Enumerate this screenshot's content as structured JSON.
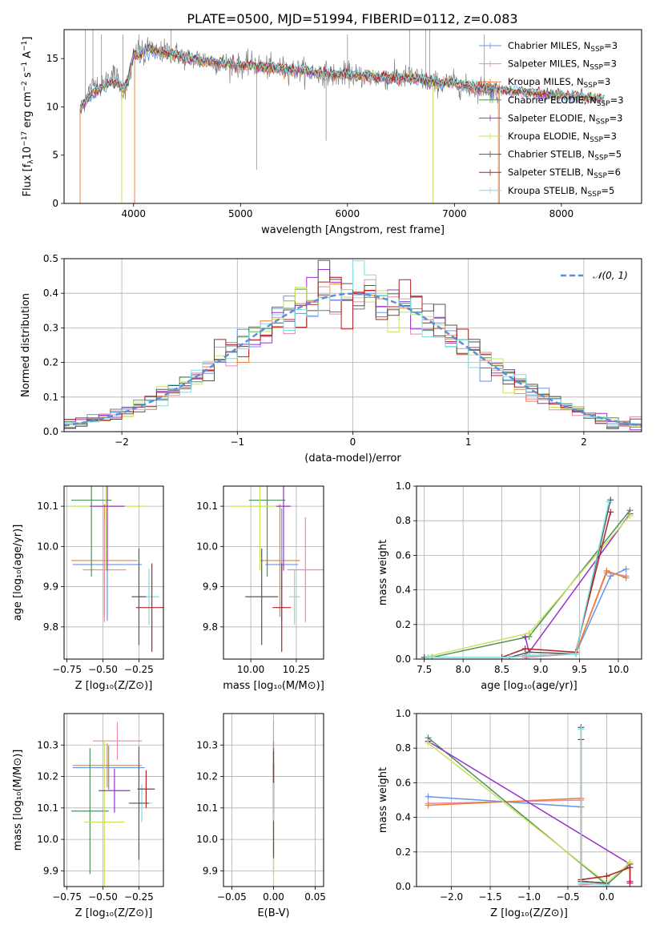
{
  "figure": {
    "title": "PLATE=0500, MJD=51994, FIBERID=0112, z=0.083"
  },
  "series_styles": [
    {
      "name": "Chabrier MILES, N_{SSP}=3",
      "color": "#6495ed"
    },
    {
      "name": "Salpeter MILES, N_{SSP}=3",
      "color": "#e78bab"
    },
    {
      "name": "Kroupa MILES, N_{SSP}=3",
      "color": "#ed7d31"
    },
    {
      "name": "Chabrier ELODIE, N_{SSP}=3",
      "color": "#4f8f5f"
    },
    {
      "name": "Salpeter ELODIE, N_{SSP}=3",
      "color": "#9932cc"
    },
    {
      "name": "Kroupa ELODIE, N_{SSP}=3",
      "color": "#c8e35a"
    },
    {
      "name": "Chabrier STELIB, N_{SSP}=5",
      "color": "#555555"
    },
    {
      "name": "Salpeter STELIB, N_{SSP}=6",
      "color": "#b22222"
    },
    {
      "name": "Kroupa STELIB, N_{SSP}=5",
      "color": "#7fdde0"
    }
  ],
  "chart_data": [
    {
      "id": "spectrum",
      "type": "line",
      "xlabel": "wavelength [Angstrom, rest frame]",
      "ylabel": "Flux [f_λ10^{-17} erg cm^{-2} s^{-1} A^{-1}]",
      "xlim": [
        3350,
        8750
      ],
      "ylim": [
        0,
        18
      ],
      "xticks": [
        4000,
        5000,
        6000,
        7000,
        8000
      ],
      "yticks": [
        0,
        5,
        10,
        15
      ],
      "grid": false,
      "legend_position": "upper-right",
      "observed": {
        "name": "data",
        "color": "#808080",
        "x": [
          3500,
          3550,
          3600,
          3650,
          3700,
          3750,
          3800,
          3850,
          3900,
          3950,
          4000,
          4050,
          4100,
          4150,
          4200,
          4300,
          4400,
          4500,
          4600,
          4700,
          4800,
          4900,
          5000,
          5100,
          5200,
          5300,
          5400,
          5500,
          5600,
          5700,
          5800,
          5900,
          6000,
          6100,
          6200,
          6300,
          6400,
          6500,
          6600,
          6700,
          6800,
          6900,
          7000,
          7100,
          7200,
          7300,
          7400
        ],
        "y": [
          9.5,
          11.0,
          12.0,
          12.5,
          12.0,
          12.8,
          13.5,
          13.0,
          11.5,
          12.5,
          15.0,
          16.0,
          15.0,
          16.5,
          15.5,
          15.8,
          15.5,
          15.0,
          15.0,
          14.8,
          14.5,
          14.5,
          14.2,
          14.5,
          14.2,
          14.0,
          14.0,
          13.8,
          13.8,
          13.5,
          13.5,
          13.2,
          13.5,
          13.2,
          13.2,
          13.0,
          13.0,
          13.0,
          13.2,
          12.8,
          12.5,
          12.5,
          12.5,
          12.0,
          12.0,
          12.0,
          11.5
        ]
      },
      "spikes": [
        {
          "x": 3550,
          "top": 18
        },
        {
          "x": 3620,
          "top": 18
        },
        {
          "x": 3700,
          "top": 17.5
        },
        {
          "x": 3900,
          "top": 17.5
        },
        {
          "x": 4050,
          "top": 17.5
        },
        {
          "x": 4350,
          "top": 18
        },
        {
          "x": 6000,
          "top": 17.5
        },
        {
          "x": 6580,
          "top": 18
        },
        {
          "x": 6730,
          "top": 18
        },
        {
          "x": 6770,
          "top": 18
        },
        {
          "x": 7280,
          "top": 17.5
        }
      ],
      "dips": [
        {
          "x": 3500,
          "bottom": 0
        },
        {
          "x": 3890,
          "bottom": 0
        },
        {
          "x": 4010,
          "bottom": 0
        },
        {
          "x": 5150,
          "bottom": 3.5
        },
        {
          "x": 5800,
          "bottom": 6.5
        },
        {
          "x": 6800,
          "bottom": 0
        },
        {
          "x": 7420,
          "bottom": 0
        }
      ],
      "model": {
        "x": [
          3500,
          3550,
          3600,
          3650,
          3700,
          3750,
          3800,
          3850,
          3900,
          3950,
          4000,
          4050,
          4100,
          4150,
          4200,
          4300,
          4400,
          4500,
          4600,
          4700,
          4800,
          4900,
          5000,
          5100,
          5200,
          5300,
          5400,
          5500,
          5600,
          5700,
          5800,
          5900,
          6000,
          6100,
          6200,
          6300,
          6400,
          6500,
          6600,
          6700,
          6800,
          6900,
          7000,
          7100,
          7200,
          7300,
          7400,
          7500,
          7600,
          7700,
          7800,
          7900,
          8000,
          8100,
          8200,
          8300,
          8400
        ],
        "y": [
          9.8,
          10.5,
          11.2,
          11.8,
          12.0,
          12.3,
          12.6,
          12.4,
          11.8,
          12.8,
          15.5,
          15.2,
          15.8,
          16.0,
          15.6,
          15.6,
          15.4,
          15.0,
          14.8,
          14.7,
          14.5,
          14.4,
          14.3,
          14.3,
          14.1,
          14.0,
          13.9,
          13.8,
          13.7,
          13.5,
          13.4,
          13.3,
          13.3,
          13.2,
          13.1,
          13.0,
          13.0,
          12.9,
          12.9,
          12.8,
          12.6,
          12.5,
          12.4,
          12.2,
          12.0,
          11.9,
          11.8,
          11.7,
          11.6,
          11.5,
          11.4,
          11.3,
          11.2,
          11.1,
          11.0,
          10.9,
          10.8
        ]
      }
    },
    {
      "id": "residuals",
      "type": "line",
      "xlabel": "(data-model)/error",
      "ylabel": "Normed distribution",
      "xlim": [
        -2.5,
        2.5
      ],
      "ylim": [
        0,
        0.5
      ],
      "xticks": [
        -2,
        -1,
        0,
        1,
        2
      ],
      "yticks": [
        0.0,
        0.1,
        0.2,
        0.3,
        0.4,
        0.5
      ],
      "grid": true,
      "legend_position": "upper-right",
      "reference": {
        "name": "𝒩(0, 1)",
        "color": "#5b8fd9",
        "mean": 0,
        "sigma": 1
      },
      "bin_edges_start": -2.5,
      "bin_width": 0.1,
      "bins": 50
    },
    {
      "id": "age-vs-Z",
      "type": "scatter",
      "xlabel": "Z [log10(Z/Z⊙)]",
      "ylabel": "age [log10(age/yr)]",
      "xlim": [
        -0.77,
        -0.08
      ],
      "ylim": [
        9.72,
        10.15
      ],
      "xticks": [
        -0.75,
        -0.5,
        -0.25
      ],
      "yticks": [
        9.8,
        9.9,
        10.0,
        10.1
      ],
      "grid": true,
      "points": [
        {
          "x": -0.47,
          "y": 9.955,
          "xerr": 0.24,
          "yerr": 0.14,
          "series": 0
        },
        {
          "x": -0.49,
          "y": 9.965,
          "xerr": 0.23,
          "yerr": 0.14,
          "series": 2
        },
        {
          "x": -0.49,
          "y": 9.942,
          "xerr": 0.15,
          "yerr": 0.13,
          "series": 1
        },
        {
          "x": -0.58,
          "y": 10.115,
          "xerr": 0.14,
          "yerr": 0.19,
          "series": 3
        },
        {
          "x": -0.48,
          "y": 10.1,
          "xerr": 0.26,
          "yerr": 0.16,
          "series": 5
        },
        {
          "x": -0.47,
          "y": 10.1,
          "xerr": 0.12,
          "yerr": 0.16,
          "series": 4
        },
        {
          "x": -0.18,
          "y": 9.875,
          "xerr": 0.07,
          "yerr": 0.07,
          "series": 8
        },
        {
          "x": -0.16,
          "y": 9.848,
          "xerr": 0.11,
          "yerr": 0.11,
          "series": 7
        },
        {
          "x": -0.25,
          "y": 9.875,
          "xerr": 0.05,
          "yerr": 0.12,
          "series": 6
        }
      ]
    },
    {
      "id": "age-vs-mass",
      "type": "scatter",
      "xlabel": "mass [log10(M/M⊙)]",
      "ylabel": "",
      "xlim": [
        9.85,
        10.4
      ],
      "ylim": [
        9.72,
        10.15
      ],
      "xticks": [
        10.0,
        10.25
      ],
      "yticks": [
        9.8,
        9.9,
        10.0,
        10.1
      ],
      "grid": true,
      "points": [
        {
          "x": 10.17,
          "y": 9.955,
          "xerr": 0.09,
          "yerr": 0.14,
          "series": 0
        },
        {
          "x": 10.16,
          "y": 9.965,
          "xerr": 0.11,
          "yerr": 0.14,
          "series": 2
        },
        {
          "x": 10.3,
          "y": 9.942,
          "xerr": 0.1,
          "yerr": 0.13,
          "series": 1
        },
        {
          "x": 10.09,
          "y": 10.115,
          "xerr": 0.1,
          "yerr": 0.19,
          "series": 3
        },
        {
          "x": 10.05,
          "y": 10.1,
          "xerr": 0.16,
          "yerr": 0.16,
          "series": 5
        },
        {
          "x": 10.18,
          "y": 10.1,
          "xerr": 0.04,
          "yerr": 0.16,
          "series": 4
        },
        {
          "x": 10.24,
          "y": 9.875,
          "xerr": 0.03,
          "yerr": 0.07,
          "series": 8
        },
        {
          "x": 10.17,
          "y": 9.848,
          "xerr": 0.05,
          "yerr": 0.11,
          "series": 7
        },
        {
          "x": 10.06,
          "y": 9.875,
          "xerr": 0.09,
          "yerr": 0.12,
          "series": 6
        }
      ]
    },
    {
      "id": "weights-vs-age",
      "type": "line",
      "xlabel": "age  [log10(age/yr)]",
      "ylabel": "mass weight",
      "xlim": [
        7.4,
        10.3
      ],
      "ylim": [
        0,
        1
      ],
      "xticks": [
        7.5,
        8.0,
        8.5,
        9.0,
        9.5,
        10.0
      ],
      "yticks": [
        0.0,
        0.2,
        0.4,
        0.6,
        0.8,
        1.0
      ],
      "grid": true,
      "series": [
        {
          "style": 0,
          "x": [
            8.8,
            9.45,
            9.9,
            10.1
          ],
          "y": [
            0.02,
            0.03,
            0.48,
            0.52
          ]
        },
        {
          "style": 1,
          "x": [
            8.8,
            9.45,
            9.85,
            10.1
          ],
          "y": [
            0.01,
            0.03,
            0.5,
            0.48
          ]
        },
        {
          "style": 2,
          "x": [
            8.82,
            9.45,
            9.85,
            10.1
          ],
          "y": [
            0.02,
            0.03,
            0.51,
            0.47
          ]
        },
        {
          "style": 3,
          "x": [
            7.6,
            8.85,
            10.15
          ],
          "y": [
            0.01,
            0.13,
            0.86
          ]
        },
        {
          "style": 4,
          "x": [
            8.8,
            8.85,
            10.15
          ],
          "y": [
            0.13,
            0.04,
            0.84
          ]
        },
        {
          "style": 5,
          "x": [
            7.5,
            8.85,
            10.15
          ],
          "y": [
            0.01,
            0.15,
            0.83
          ]
        },
        {
          "style": 6,
          "x": [
            7.5,
            8.6,
            8.85,
            9.45,
            9.9
          ],
          "y": [
            0.01,
            0.01,
            0.04,
            0.03,
            0.92
          ]
        },
        {
          "style": 7,
          "x": [
            8.5,
            8.8,
            9.45,
            9.9
          ],
          "y": [
            0.01,
            0.06,
            0.04,
            0.85
          ]
        },
        {
          "style": 8,
          "x": [
            7.55,
            8.6,
            8.85,
            9.45,
            9.88
          ],
          "y": [
            0.01,
            0.01,
            0.02,
            0.03,
            0.91
          ]
        }
      ]
    },
    {
      "id": "mass-vs-Z",
      "type": "scatter",
      "xlabel": "Z [log10(Z/Z⊙)]",
      "ylabel": "mass [log10(M/M⊙)]",
      "xlim": [
        -0.77,
        -0.08
      ],
      "ylim": [
        9.85,
        10.4
      ],
      "xticks": [
        -0.75,
        -0.5,
        -0.25
      ],
      "yticks": [
        9.9,
        10.0,
        10.1,
        10.2,
        10.3
      ],
      "grid": true,
      "points": [
        {
          "x": -0.46,
          "y": 10.228,
          "xerr": 0.25,
          "yerr": 0.07,
          "series": 0
        },
        {
          "x": -0.47,
          "y": 10.235,
          "xerr": 0.24,
          "yerr": 0.07,
          "series": 2
        },
        {
          "x": -0.4,
          "y": 10.313,
          "xerr": 0.17,
          "yerr": 0.06,
          "series": 1
        },
        {
          "x": -0.59,
          "y": 10.09,
          "xerr": 0.13,
          "yerr": 0.2,
          "series": 3
        },
        {
          "x": -0.49,
          "y": 10.055,
          "xerr": 0.14,
          "yerr": 0.26,
          "series": 5
        },
        {
          "x": -0.42,
          "y": 10.155,
          "xerr": 0.11,
          "yerr": 0.07,
          "series": 4
        },
        {
          "x": -0.23,
          "y": 10.115,
          "xerr": 0.07,
          "yerr": 0.06,
          "series": 8
        },
        {
          "x": -0.2,
          "y": 10.16,
          "xerr": 0.06,
          "yerr": 0.06,
          "series": 7
        },
        {
          "x": -0.25,
          "y": 10.115,
          "xerr": 0.07,
          "yerr": 0.18,
          "series": 6
        }
      ]
    },
    {
      "id": "mass-vs-EBV",
      "type": "scatter",
      "xlabel": "E(B-V)",
      "ylabel": "",
      "xlim": [
        -0.06,
        0.06
      ],
      "ylim": [
        9.85,
        10.4
      ],
      "xticks": [
        -0.05,
        0.0,
        0.05
      ],
      "yticks": [
        9.9,
        10.0,
        10.1,
        10.2,
        10.3
      ],
      "grid": true,
      "points": [
        {
          "x": 0.0,
          "y": 10.23,
          "xerr": 0,
          "yerr": 0.08,
          "series": 0
        },
        {
          "x": 0.0,
          "y": 10.31,
          "xerr": 0,
          "yerr": 0.07,
          "series": 1
        },
        {
          "x": 0.0,
          "y": 10.24,
          "xerr": 0,
          "yerr": 0.07,
          "series": 2
        },
        {
          "x": 0.0,
          "y": 10.09,
          "xerr": 0,
          "yerr": 0.2,
          "series": 3
        },
        {
          "x": 0.0,
          "y": 10.16,
          "xerr": 0,
          "yerr": 0.08,
          "series": 4
        },
        {
          "x": 0.0,
          "y": 10.05,
          "xerr": 0,
          "yerr": 0.22,
          "series": 5
        },
        {
          "x": 0.0,
          "y": 10.11,
          "xerr": 0,
          "yerr": 0.17,
          "series": 6
        },
        {
          "x": 0.0,
          "y": 10.17,
          "xerr": 0,
          "yerr": 0.07,
          "series": 7
        },
        {
          "x": 0.0,
          "y": 10.12,
          "xerr": 0,
          "yerr": 0.06,
          "series": 8
        }
      ]
    },
    {
      "id": "weights-vs-Z",
      "type": "line",
      "xlabel": "Z [log10(Z/Z⊙)]",
      "ylabel": "mass weight",
      "xlim": [
        -2.45,
        0.45
      ],
      "ylim": [
        0,
        1
      ],
      "xticks": [
        -2.0,
        -1.5,
        -1.0,
        -0.5,
        0.0
      ],
      "yticks": [
        0.0,
        0.2,
        0.4,
        0.6,
        0.8,
        1.0
      ],
      "grid": true,
      "series": [
        {
          "style": 0,
          "x": [
            -2.3,
            -0.33,
            -0.33,
            0.0
          ],
          "y": [
            0.52,
            0.46,
            0.03,
            0.02
          ]
        },
        {
          "style": 1,
          "x": [
            -2.3,
            -0.33,
            -0.33,
            0.0
          ],
          "y": [
            0.48,
            0.5,
            0.01,
            0.02
          ]
        },
        {
          "style": 2,
          "x": [
            -2.3,
            -0.33,
            -0.33,
            0.0
          ],
          "y": [
            0.47,
            0.51,
            0.03,
            0.02
          ]
        },
        {
          "style": 3,
          "x": [
            -2.3,
            0.0,
            0.3
          ],
          "y": [
            0.86,
            0.01,
            0.13
          ]
        },
        {
          "style": 4,
          "x": [
            -2.3,
            0.3,
            0.3
          ],
          "y": [
            0.84,
            0.13,
            0.03
          ]
        },
        {
          "style": 5,
          "x": [
            -2.3,
            0.0,
            0.3
          ],
          "y": [
            0.83,
            0.02,
            0.14
          ]
        },
        {
          "style": 6,
          "x": [
            -0.33,
            -0.33,
            0.0
          ],
          "y": [
            0.92,
            0.03,
            0.02
          ]
        },
        {
          "style": 7,
          "x": [
            -0.33,
            -0.33,
            0.0,
            0.3,
            0.3
          ],
          "y": [
            0.85,
            0.04,
            0.06,
            0.11,
            0.02
          ]
        },
        {
          "style": 8,
          "x": [
            -0.33,
            -0.33,
            0.0
          ],
          "y": [
            0.91,
            0.02,
            0.01
          ]
        }
      ]
    }
  ]
}
